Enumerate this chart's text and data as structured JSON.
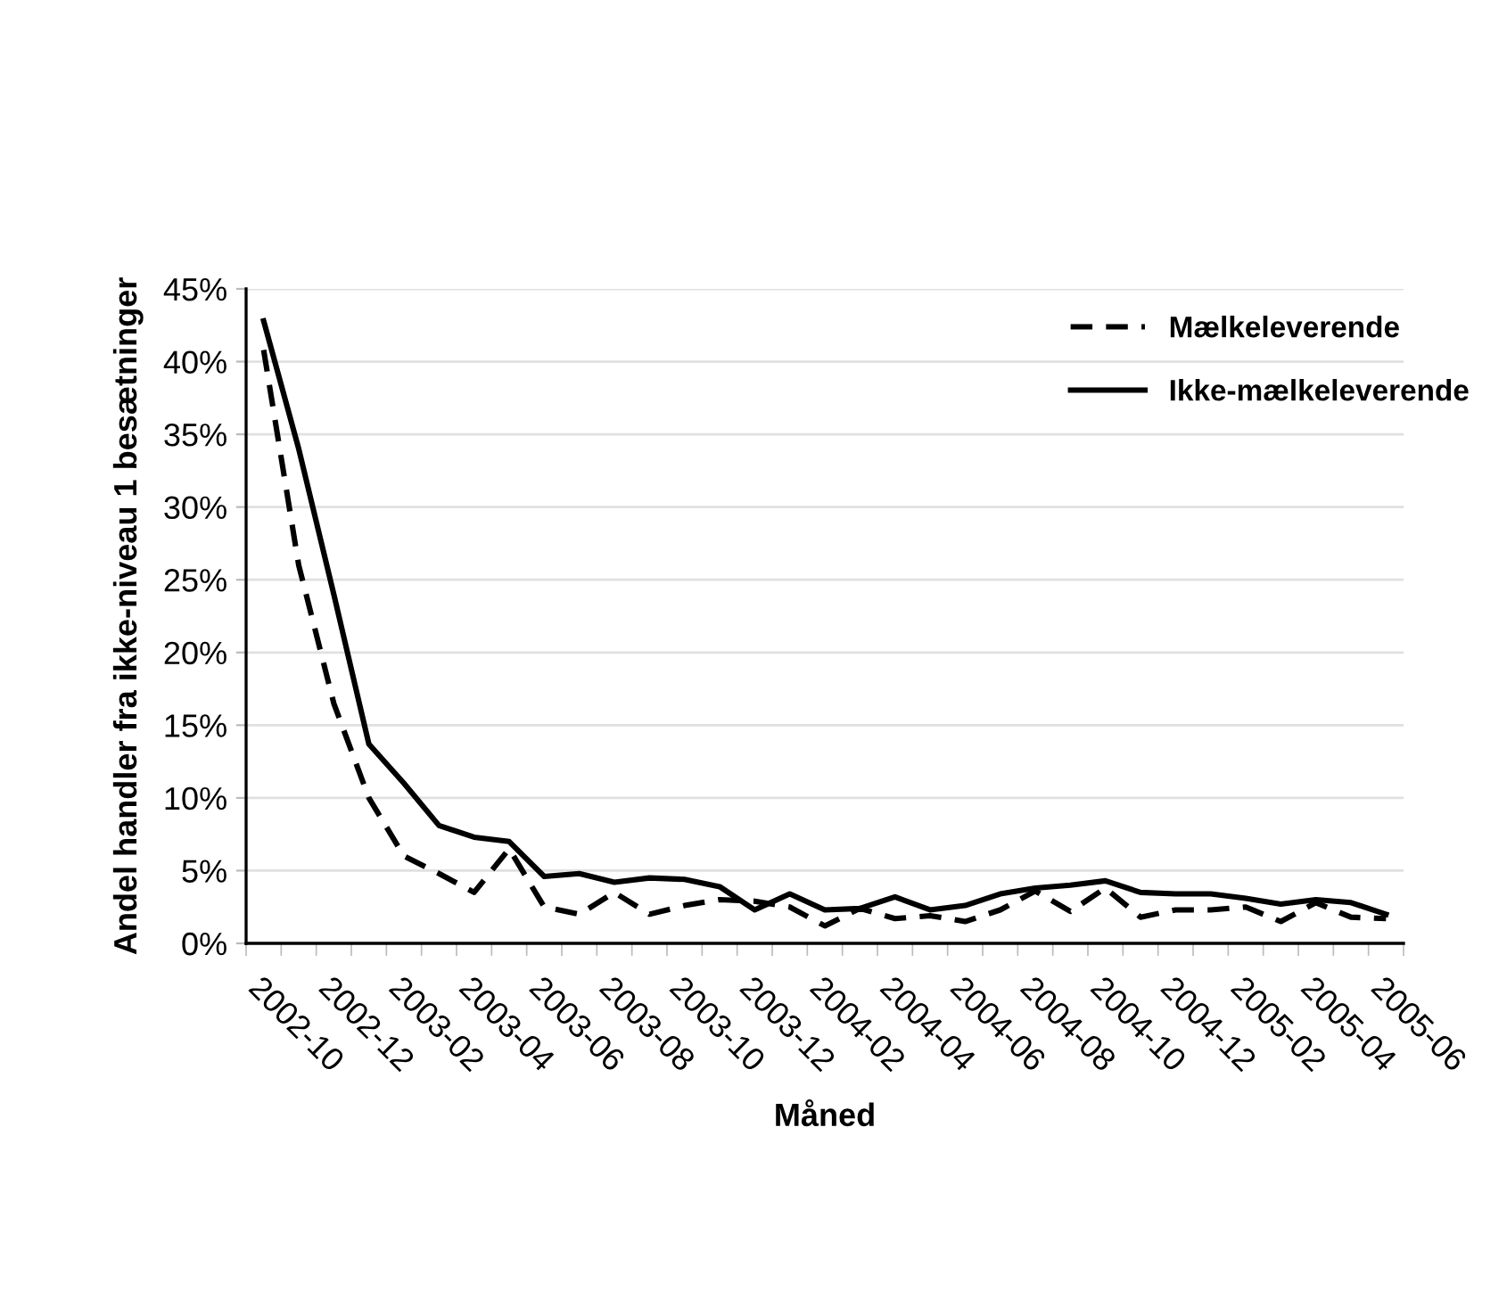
{
  "chart_data": {
    "type": "line",
    "xlabel": "Måned",
    "ylabel": "Andel handler fra ikke-niveau 1 besætninger",
    "categories": [
      "2002-10",
      null,
      "2002-12",
      null,
      "2003-02",
      null,
      "2003-04",
      null,
      "2003-06",
      null,
      "2003-08",
      null,
      "2003-10",
      null,
      "2003-12",
      null,
      "2004-02",
      null,
      "2004-04",
      null,
      "2004-06",
      null,
      "2004-08",
      null,
      "2004-10",
      null,
      "2004-12",
      null,
      "2005-02",
      null,
      "2005-04",
      null,
      "2005-06"
    ],
    "series": [
      {
        "name": "Mælkeleverende",
        "color": "#000000",
        "line_style": "dashed",
        "values": [
          40.8,
          26,
          16.5,
          10,
          6,
          4.8,
          3.5,
          6.5,
          2.5,
          2.0,
          3.5,
          2.0,
          2.6,
          3.0,
          2.9,
          2.5,
          1.2,
          2.4,
          1.7,
          1.9,
          1.5,
          2.3,
          3.6,
          2.2,
          3.8,
          1.8,
          2.3,
          2.3,
          2.5,
          1.5,
          2.8,
          1.8,
          1.7
        ]
      },
      {
        "name": "Ikke-mælkeleverende",
        "color": "#000000",
        "line_style": "solid",
        "values": [
          42.8,
          34,
          24,
          13.7,
          11,
          8.1,
          7.3,
          7.0,
          4.6,
          4.8,
          4.2,
          4.5,
          4.4,
          3.9,
          2.3,
          3.4,
          2.3,
          2.4,
          3.2,
          2.3,
          2.6,
          3.4,
          3.8,
          4.0,
          4.3,
          3.5,
          3.4,
          3.4,
          3.1,
          2.7,
          3.0,
          2.8,
          2.0
        ]
      }
    ],
    "ylim": [
      0,
      45
    ],
    "yticks": [
      {
        "value": 0,
        "label": "0%"
      },
      {
        "value": 5,
        "label": "5%"
      },
      {
        "value": 10,
        "label": "10%"
      },
      {
        "value": 15,
        "label": "15%"
      },
      {
        "value": 20,
        "label": "20%"
      },
      {
        "value": 25,
        "label": "25%"
      },
      {
        "value": 30,
        "label": "30%"
      },
      {
        "value": 35,
        "label": "35%"
      },
      {
        "value": 40,
        "label": "40%"
      },
      {
        "value": 45,
        "label": "45%"
      }
    ],
    "grid": "y",
    "legend": "top right",
    "marker": "none"
  }
}
